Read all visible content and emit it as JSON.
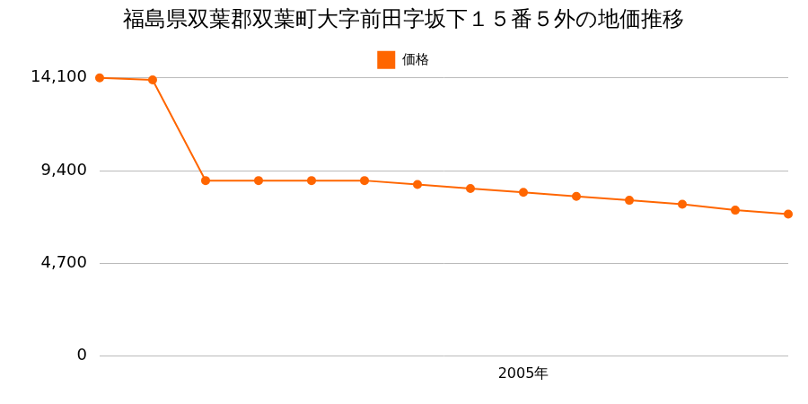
{
  "chart_data": {
    "type": "line",
    "title": "福島県双葉郡双葉町大字前田字坂下１５番５外の地価推移",
    "categories": [
      null,
      null,
      null,
      null,
      null,
      null,
      null,
      null,
      "2005年",
      null,
      null,
      null,
      null,
      null
    ],
    "series": [
      {
        "name": "価格",
        "color": "#ff6600",
        "marker": "circle",
        "line_style": "solid",
        "values": [
          14100,
          14000,
          8900,
          8900,
          8900,
          8900,
          8700,
          8500,
          8300,
          8100,
          7900,
          7700,
          7400,
          7200
        ]
      }
    ],
    "ylim": [
      0,
      14100
    ],
    "yticks": [
      0,
      {
        "value": 4700,
        "label": "4,700"
      },
      {
        "value": 9400,
        "label": "9,400"
      },
      {
        "value": 14100,
        "label": "14,100"
      }
    ],
    "grid": "y",
    "legend": "top"
  }
}
